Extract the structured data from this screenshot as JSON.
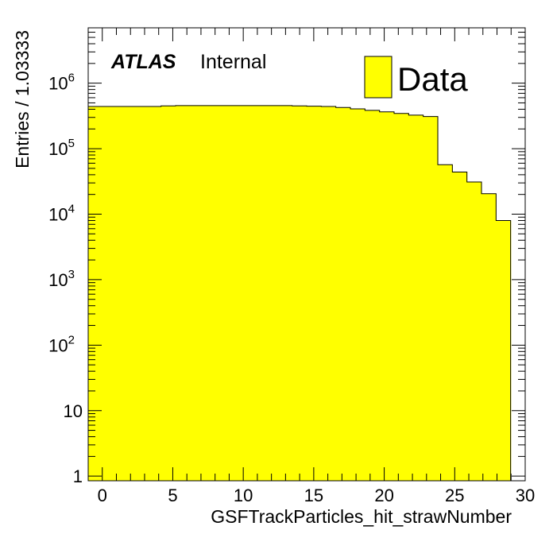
{
  "chart_data": {
    "type": "bar",
    "style": "histogram",
    "xlabel": "GSFTrackParticles_hit_strawNumber",
    "ylabel": "Entries / 1.03333",
    "xlim": [
      -1,
      30
    ],
    "ylim": [
      0.85,
      7000000
    ],
    "y_scale": "log",
    "grid": false,
    "legend": {
      "position": "top-right",
      "entries": [
        "Data"
      ]
    },
    "annotations": {
      "experiment": "ATLAS",
      "status": "Internal"
    },
    "x_ticks": [
      "0",
      "5",
      "10",
      "15",
      "20",
      "25",
      "30"
    ],
    "y_ticks": [
      {
        "base": "1",
        "exp": ""
      },
      {
        "base": "10",
        "exp": ""
      },
      {
        "base": "10",
        "exp": "2"
      },
      {
        "base": "10",
        "exp": "3"
      },
      {
        "base": "10",
        "exp": "4"
      },
      {
        "base": "10",
        "exp": "5"
      },
      {
        "base": "10",
        "exp": "6"
      }
    ],
    "bin_width": 1.03333,
    "x_start": -1,
    "values": [
      440000,
      440000,
      440000,
      440000,
      440000,
      450000,
      455000,
      455000,
      455000,
      455000,
      455000,
      455000,
      455000,
      455000,
      450000,
      445000,
      440000,
      425000,
      405000,
      385000,
      365000,
      345000,
      325000,
      310000,
      57000,
      44000,
      31000,
      20500,
      8000
    ],
    "colors": {
      "fill": "#ffff00",
      "line": "#000000"
    }
  }
}
